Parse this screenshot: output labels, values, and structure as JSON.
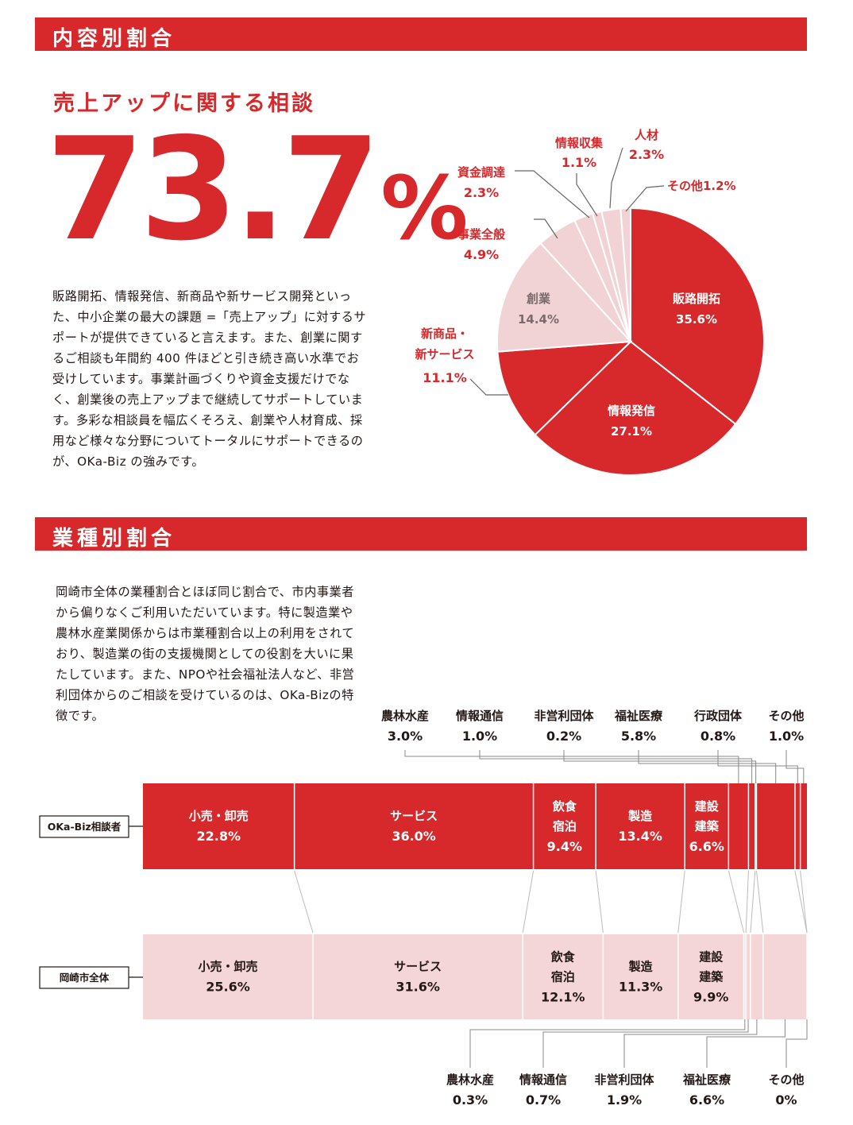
{
  "section1": {
    "title": "内容別割合"
  },
  "section2": {
    "title": "業種別割合"
  },
  "content": {
    "subtitle": "売上アップに関する相談",
    "big_value": "73.7",
    "big_unit": "%",
    "paragraph": "販路開拓、情報発信、新商品や新サービス開発といった、中小企業の最大の課題 =「売上アップ」に対するサポートが提供できていると言えます。また、創業に関するご相談も年間約 400 件ほどと引き続き高い水準でお受けしています。事業計画づくりや資金支援だけでなく、創業後の売上アップまで継続してサポートしています。多彩な相談員を幅広くそろえ、創業や人材育成、採用など様々な分野についてトータルにサポートできるのが、OKa-Biz の強みです。"
  },
  "industry": {
    "paragraph": "岡崎市全体の業種割合とほぼ同じ割合で、市内事業者から偏りなくご利用いただいています。特に製造業や農林水産業関係からは市業種割合以上の利用をされており、製造業の街の支援機関としての役割を大いに果たしています。また、NPOや社会福祉法人など、非営利団体からのご相談を受けているのは、OKa-Bizの特徴です。"
  },
  "colors": {
    "accent": "#d7282b",
    "light": "#f2d3d5",
    "bar2": "#f5d6d8"
  },
  "chart_data": [
    {
      "type": "pie",
      "slices": [
        {
          "label": "販路開拓",
          "value": 35.6,
          "text": "35.6%",
          "color": "#d7282b"
        },
        {
          "label": "情報発信",
          "value": 27.1,
          "text": "27.1%",
          "color": "#d7282b"
        },
        {
          "label": "新商品・新サービス",
          "value": 11.1,
          "text": "11.1%",
          "color": "#d7282b"
        },
        {
          "label": "創業",
          "value": 14.4,
          "text": "14.4%",
          "color": "#f2d3d5"
        },
        {
          "label": "事業全般",
          "value": 4.9,
          "text": "4.9%",
          "color": "#f2d3d5"
        },
        {
          "label": "資金調達",
          "value": 2.3,
          "text": "2.3%",
          "color": "#f2d3d5"
        },
        {
          "label": "情報収集",
          "value": 1.1,
          "text": "1.1%",
          "color": "#f2d3d5"
        },
        {
          "label": "人材",
          "value": 2.3,
          "text": "2.3%",
          "color": "#f2d3d5"
        },
        {
          "label": "その他",
          "value": 1.2,
          "text": "1.2%",
          "color": "#f2d3d5"
        }
      ]
    },
    {
      "type": "bar",
      "stacked": true,
      "orientation": "horizontal",
      "categories": [
        "小売・卸売",
        "サービス",
        "飲食宿泊",
        "製造",
        "建設建築",
        "農林水産",
        "情報通信",
        "非営利団体",
        "福祉医療",
        "行政団体",
        "その他"
      ],
      "series": [
        {
          "name": "OKa-Biz相談者",
          "values": [
            22.8,
            36.0,
            9.4,
            13.4,
            6.6,
            3.0,
            1.0,
            0.2,
            5.8,
            0.8,
            1.0
          ],
          "texts": [
            "22.8%",
            "36.0%",
            "9.4%",
            "13.4%",
            "6.6%",
            "3.0%",
            "1.0%",
            "0.2%",
            "5.8%",
            "0.8%",
            "1.0%"
          ]
        },
        {
          "name": "岡崎市全体",
          "values": [
            25.6,
            31.6,
            12.1,
            11.3,
            9.9,
            0.3,
            0.7,
            1.9,
            6.6,
            0.0,
            0.0
          ],
          "texts": [
            "25.6%",
            "31.6%",
            "12.1%",
            "11.3%",
            "9.9%",
            "0.3%",
            "0.7%",
            "1.9%",
            "6.6%",
            "",
            "0%"
          ]
        }
      ]
    }
  ]
}
